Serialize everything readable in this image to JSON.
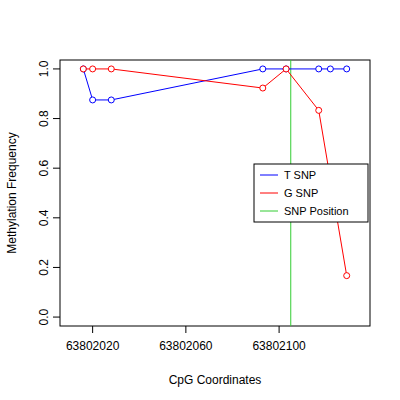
{
  "chart_data": {
    "type": "line",
    "x_label": "CpG Coordinates",
    "y_label": "Methylation Frequency",
    "xlim": [
      63802006,
      63802139
    ],
    "ylim": [
      -0.036,
      1.036
    ],
    "xticks": [
      63802020,
      63802060,
      63802100
    ],
    "yticks": [
      {
        "value": 0,
        "label": "0.0"
      },
      {
        "value": 0.2,
        "label": "0.2"
      },
      {
        "value": 0.4,
        "label": "0.4"
      },
      {
        "value": 0.6,
        "label": "0.6"
      },
      {
        "value": 0.8,
        "label": "0.8"
      },
      {
        "value": 1,
        "label": "1.0"
      }
    ],
    "grid": false,
    "legend": "right",
    "marker": "open-circle",
    "line_style": "solid",
    "series": [
      {
        "name": "T SNP",
        "color": "#0000ff",
        "x": [
          63802016,
          63802020,
          63802028,
          63802093,
          63802103,
          63802117,
          63802122,
          63802129
        ],
        "values": [
          1.0,
          0.875,
          0.875,
          1.0,
          1.0,
          1.0,
          1.0,
          1.0
        ]
      },
      {
        "name": "G SNP",
        "color": "#ff0000",
        "x": [
          63802016,
          63802020,
          63802028,
          63802093,
          63802103,
          63802117,
          63802129
        ],
        "values": [
          1.0,
          1.0,
          1.0,
          0.923,
          1.0,
          0.833,
          0.167
        ]
      }
    ],
    "vlines": [
      {
        "name": "SNP Position",
        "color": "#33cc33",
        "x": 63802105
      }
    ]
  }
}
